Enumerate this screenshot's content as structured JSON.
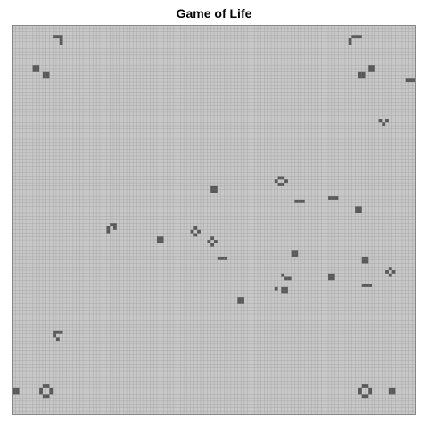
{
  "title": "Game of Life",
  "board": {
    "columns": 120,
    "rows": 116,
    "colors": {
      "dead": "#c8c8c8",
      "grid": "#a8a8a8",
      "alive": "#5a5a5a",
      "border": "#888888"
    },
    "live_cells": [
      [
        12,
        3
      ],
      [
        13,
        3
      ],
      [
        14,
        3
      ],
      [
        14,
        4
      ],
      [
        14,
        5
      ],
      [
        101,
        3
      ],
      [
        102,
        3
      ],
      [
        103,
        3
      ],
      [
        100,
        4
      ],
      [
        100,
        5
      ],
      [
        6,
        12
      ],
      [
        7,
        12
      ],
      [
        6,
        13
      ],
      [
        7,
        13
      ],
      [
        9,
        14
      ],
      [
        10,
        14
      ],
      [
        9,
        15
      ],
      [
        10,
        15
      ],
      [
        106,
        12
      ],
      [
        107,
        12
      ],
      [
        106,
        13
      ],
      [
        107,
        13
      ],
      [
        103,
        14
      ],
      [
        104,
        14
      ],
      [
        103,
        15
      ],
      [
        104,
        15
      ],
      [
        117,
        16
      ],
      [
        118,
        16
      ],
      [
        119,
        16
      ],
      [
        109,
        28
      ],
      [
        111,
        28
      ],
      [
        110,
        29
      ],
      [
        79,
        45
      ],
      [
        80,
        45
      ],
      [
        78,
        46
      ],
      [
        81,
        46
      ],
      [
        79,
        47
      ],
      [
        80,
        47
      ],
      [
        59,
        48
      ],
      [
        60,
        48
      ],
      [
        59,
        49
      ],
      [
        60,
        49
      ],
      [
        84,
        52
      ],
      [
        85,
        52
      ],
      [
        86,
        52
      ],
      [
        94,
        51
      ],
      [
        95,
        51
      ],
      [
        96,
        51
      ],
      [
        102,
        54
      ],
      [
        103,
        54
      ],
      [
        102,
        55
      ],
      [
        103,
        55
      ],
      [
        29,
        59
      ],
      [
        30,
        59
      ],
      [
        28,
        60
      ],
      [
        30,
        60
      ],
      [
        28,
        61
      ],
      [
        54,
        60
      ],
      [
        53,
        61
      ],
      [
        55,
        61
      ],
      [
        54,
        62
      ],
      [
        43,
        63
      ],
      [
        44,
        63
      ],
      [
        43,
        64
      ],
      [
        44,
        64
      ],
      [
        59,
        63
      ],
      [
        58,
        64
      ],
      [
        60,
        64
      ],
      [
        59,
        65
      ],
      [
        61,
        69
      ],
      [
        62,
        69
      ],
      [
        63,
        69
      ],
      [
        83,
        67
      ],
      [
        84,
        67
      ],
      [
        83,
        68
      ],
      [
        84,
        68
      ],
      [
        104,
        69
      ],
      [
        105,
        69
      ],
      [
        104,
        70
      ],
      [
        105,
        70
      ],
      [
        112,
        72
      ],
      [
        111,
        73
      ],
      [
        113,
        73
      ],
      [
        112,
        74
      ],
      [
        80,
        74
      ],
      [
        81,
        75
      ],
      [
        82,
        75
      ],
      [
        94,
        74
      ],
      [
        95,
        74
      ],
      [
        94,
        75
      ],
      [
        95,
        75
      ],
      [
        104,
        77
      ],
      [
        105,
        77
      ],
      [
        106,
        77
      ],
      [
        78,
        78
      ],
      [
        80,
        78
      ],
      [
        81,
        78
      ],
      [
        80,
        79
      ],
      [
        81,
        79
      ],
      [
        67,
        81
      ],
      [
        68,
        81
      ],
      [
        67,
        82
      ],
      [
        68,
        82
      ],
      [
        12,
        91
      ],
      [
        13,
        91
      ],
      [
        14,
        91
      ],
      [
        12,
        92
      ],
      [
        13,
        93
      ],
      [
        0,
        108
      ],
      [
        1,
        108
      ],
      [
        0,
        109
      ],
      [
        1,
        109
      ],
      [
        9,
        107
      ],
      [
        10,
        107
      ],
      [
        8,
        108
      ],
      [
        11,
        108
      ],
      [
        8,
        109
      ],
      [
        11,
        109
      ],
      [
        9,
        110
      ],
      [
        10,
        110
      ],
      [
        104,
        107
      ],
      [
        105,
        107
      ],
      [
        103,
        108
      ],
      [
        106,
        108
      ],
      [
        103,
        109
      ],
      [
        106,
        109
      ],
      [
        104,
        110
      ],
      [
        105,
        110
      ],
      [
        112,
        108
      ],
      [
        113,
        108
      ],
      [
        112,
        109
      ],
      [
        113,
        109
      ]
    ]
  }
}
